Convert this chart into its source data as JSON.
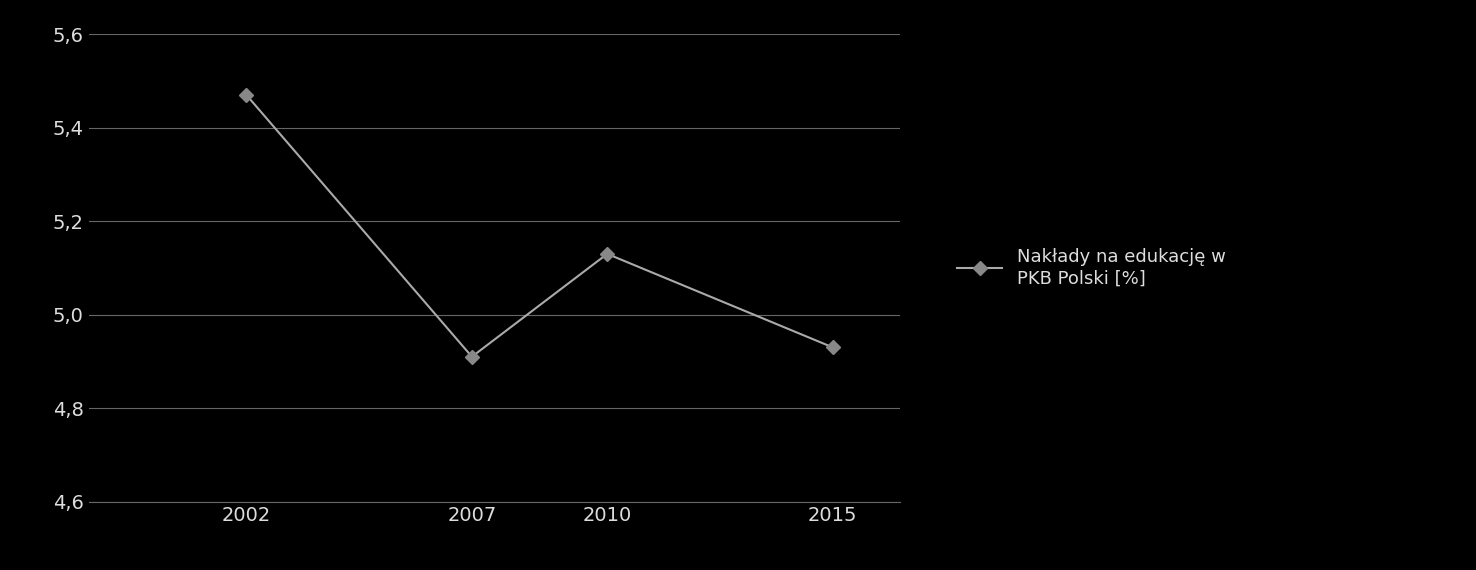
{
  "x": [
    2002,
    2007,
    2010,
    2015
  ],
  "y": [
    5.47,
    4.91,
    5.13,
    4.93
  ],
  "line_color": "#aaaaaa",
  "marker": "D",
  "marker_color": "#888888",
  "marker_size": 7,
  "line_width": 1.5,
  "legend_label": "Nakłady na edukację w\nPKB Polski [%]",
  "ylim": [
    4.6,
    5.6
  ],
  "yticks": [
    4.6,
    4.8,
    5.0,
    5.2,
    5.4,
    5.6
  ],
  "xticks": [
    2002,
    2007,
    2010,
    2015
  ],
  "background_color": "#000000",
  "text_color": "#dddddd",
  "grid_color": "#666666",
  "tick_label_size": 14,
  "legend_fontsize": 13,
  "xlim": [
    1998.5,
    2016.5
  ]
}
